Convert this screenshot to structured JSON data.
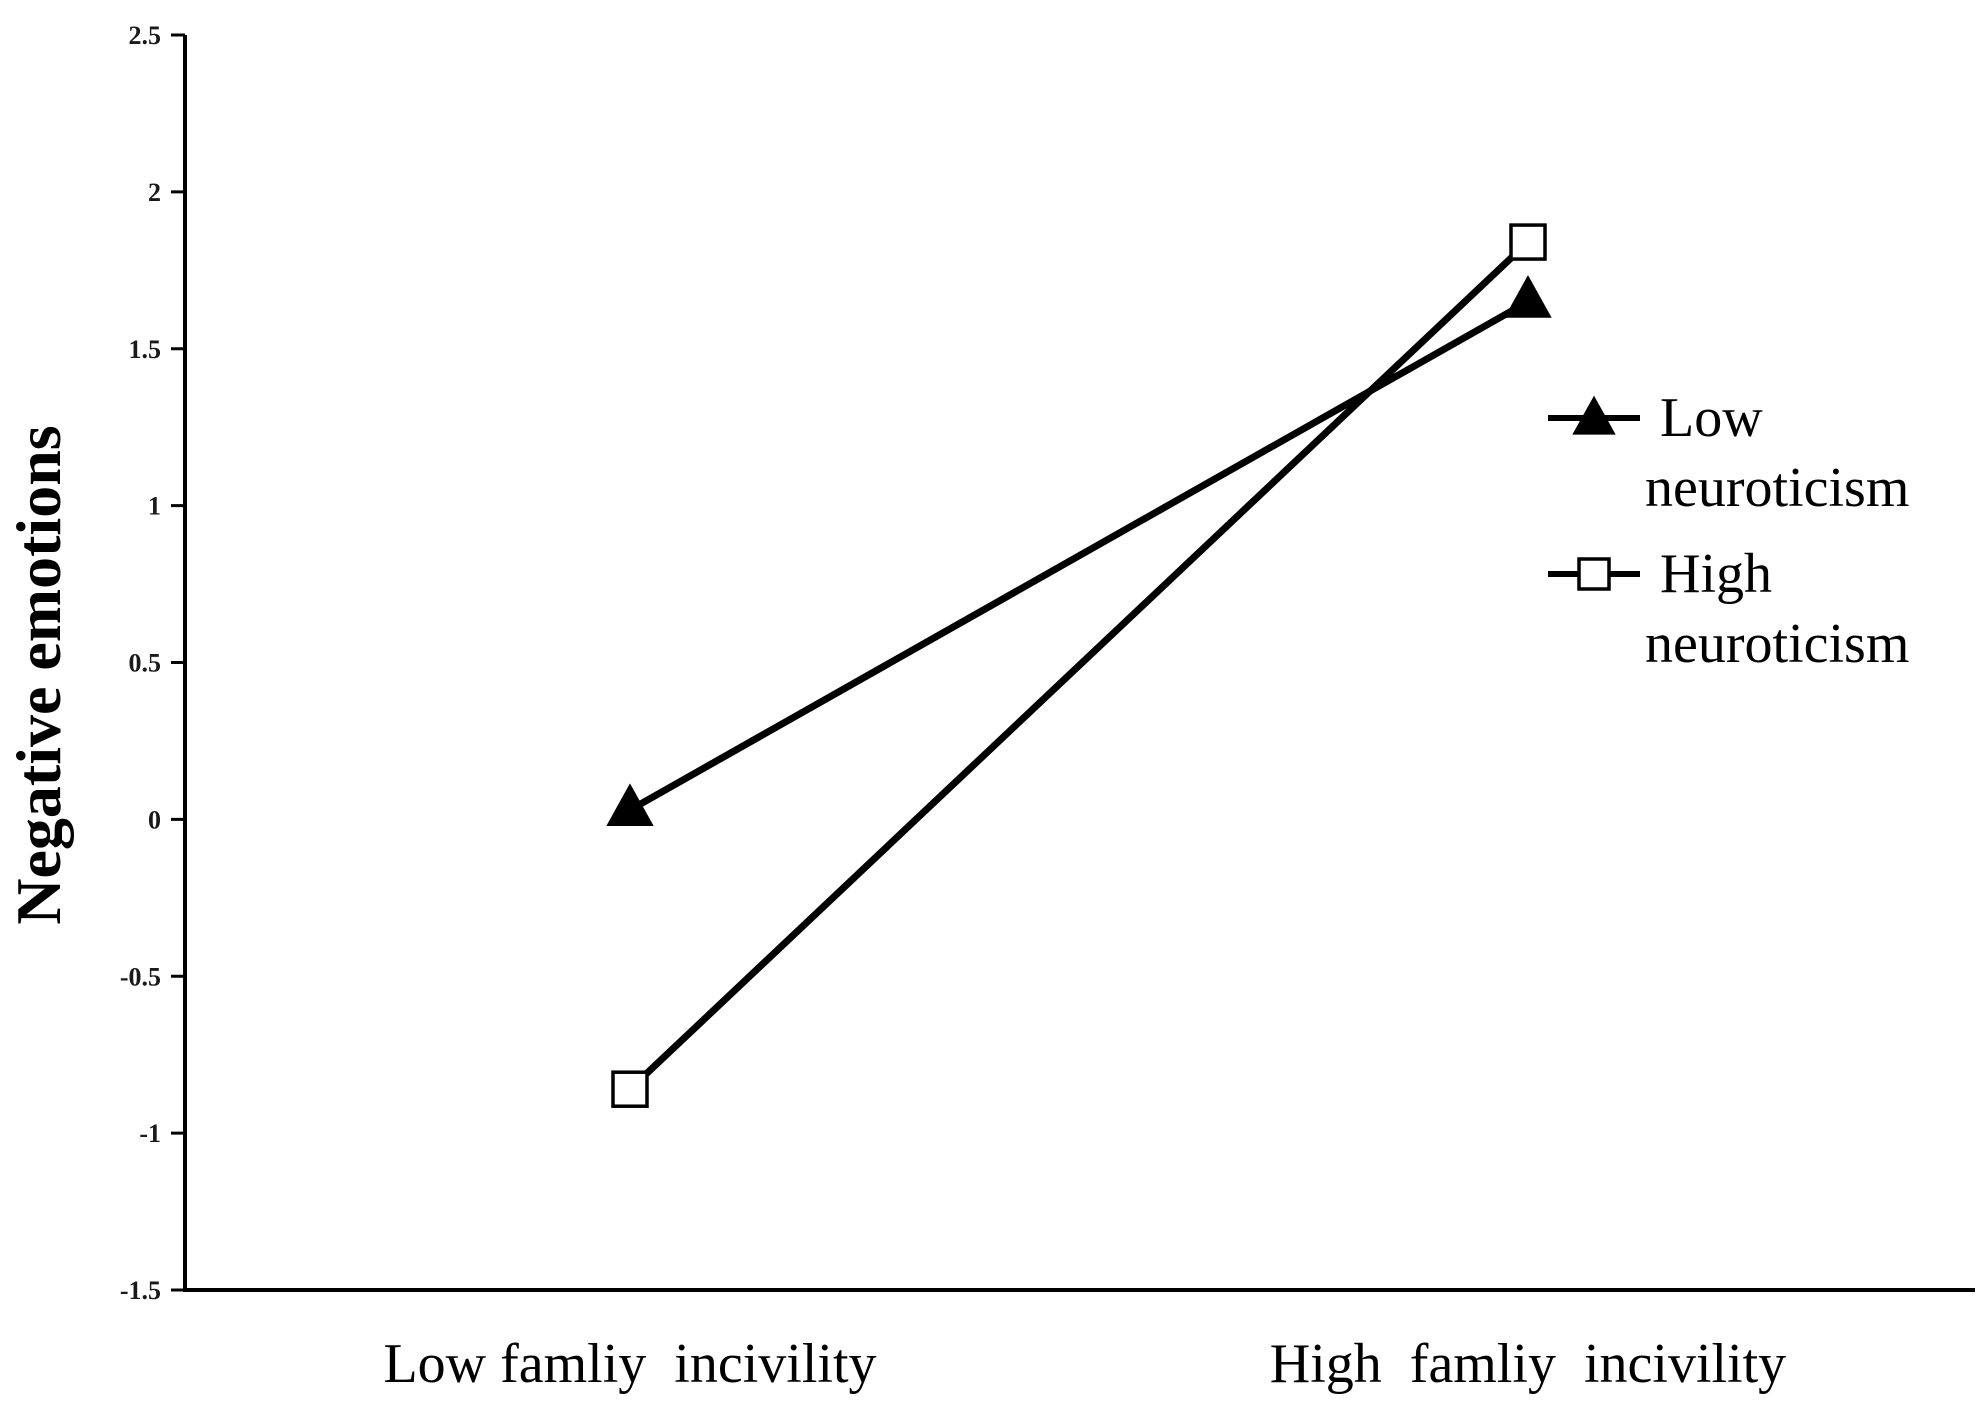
{
  "chart_data": {
    "type": "line",
    "title": "",
    "xlabel": "",
    "ylabel": "Negative emotions",
    "categories": [
      "Low famliy  incivility",
      "High  famliy  incivility"
    ],
    "ylim": [
      -1.5,
      2.5
    ],
    "yticks": [
      2.5,
      2,
      1.5,
      1,
      0.5,
      0,
      -0.5,
      -1,
      -1.5
    ],
    "ytick_labels": [
      "2.5",
      "2",
      "1.5",
      "1",
      "0.5",
      "0",
      "-0.5",
      "-1",
      "-1.5"
    ],
    "grid": false,
    "legend_position": "right",
    "series": [
      {
        "name_lines": [
          "Low",
          "neuroticism"
        ],
        "values": [
          0.03,
          1.65
        ],
        "marker": "filled-triangle",
        "color": "#000000"
      },
      {
        "name_lines": [
          "High",
          "neuroticism"
        ],
        "values": [
          -0.86,
          1.84
        ],
        "marker": "open-square",
        "color": "#000000"
      }
    ]
  }
}
